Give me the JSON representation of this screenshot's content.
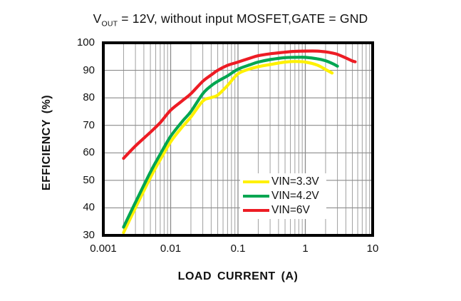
{
  "title": {
    "v": "V",
    "sub": "OUT",
    "rest": " = 12V, without input MOSFET,GATE = GND"
  },
  "chart_data": {
    "type": "line",
    "title": "VOUT = 12V, without input MOSFET,GATE = GND",
    "xlabel": "LOAD CURRENT (A)",
    "ylabel": "EFFICIENCY (%)",
    "x_scale": "log",
    "xlim": [
      0.001,
      10
    ],
    "ylim": [
      30,
      100
    ],
    "x_tick_labels": [
      "0.001",
      "0.01",
      "0.1",
      "1",
      "10"
    ],
    "x_tick_values": [
      0.001,
      0.01,
      0.1,
      1,
      10
    ],
    "y_tick_values": [
      100,
      90,
      80,
      70,
      60,
      50,
      40,
      30
    ],
    "grid": {
      "horizontal": "every 10%",
      "vertical": "log decades + minor lines",
      "minor_color": "#a0a0a0",
      "major_color": "#8c8c8c"
    },
    "frame_color": "#000000",
    "legend_position": "inside-right-middle",
    "series": [
      {
        "name": "VIN=3.3V",
        "color": "#FFF100",
        "points": [
          [
            0.002,
            31
          ],
          [
            0.003,
            40
          ],
          [
            0.005,
            51
          ],
          [
            0.007,
            57.5
          ],
          [
            0.01,
            64
          ],
          [
            0.015,
            69.5
          ],
          [
            0.02,
            73
          ],
          [
            0.03,
            78.8
          ],
          [
            0.04,
            80.1
          ],
          [
            0.05,
            81
          ],
          [
            0.07,
            84.5
          ],
          [
            0.1,
            88.7
          ],
          [
            0.15,
            90.5
          ],
          [
            0.2,
            91.3
          ],
          [
            0.3,
            92.1
          ],
          [
            0.5,
            93
          ],
          [
            0.7,
            93.2
          ],
          [
            1,
            93
          ],
          [
            1.5,
            91.9
          ],
          [
            2,
            90.3
          ],
          [
            2.5,
            89
          ]
        ]
      },
      {
        "name": "VIN=4.2V",
        "color": "#00A651",
        "points": [
          [
            0.002,
            33
          ],
          [
            0.003,
            42
          ],
          [
            0.005,
            53
          ],
          [
            0.007,
            59.5
          ],
          [
            0.01,
            66
          ],
          [
            0.015,
            71.5
          ],
          [
            0.02,
            75
          ],
          [
            0.03,
            81.5
          ],
          [
            0.04,
            84.4
          ],
          [
            0.05,
            86
          ],
          [
            0.07,
            88
          ],
          [
            0.1,
            90.4
          ],
          [
            0.15,
            92
          ],
          [
            0.2,
            93
          ],
          [
            0.3,
            93.9
          ],
          [
            0.5,
            94.6
          ],
          [
            0.7,
            94.7
          ],
          [
            1,
            94.7
          ],
          [
            1.5,
            94.2
          ],
          [
            2,
            93.5
          ],
          [
            2.5,
            92.5
          ],
          [
            3,
            91.5
          ]
        ]
      },
      {
        "name": "VIN=6V",
        "color": "#ED1C24",
        "points": [
          [
            0.002,
            58
          ],
          [
            0.003,
            62.5
          ],
          [
            0.005,
            67.5
          ],
          [
            0.007,
            71
          ],
          [
            0.01,
            75.5
          ],
          [
            0.015,
            79
          ],
          [
            0.02,
            81.5
          ],
          [
            0.03,
            86
          ],
          [
            0.04,
            88.3
          ],
          [
            0.05,
            90
          ],
          [
            0.07,
            91.8
          ],
          [
            0.1,
            93
          ],
          [
            0.15,
            94.4
          ],
          [
            0.2,
            95.3
          ],
          [
            0.3,
            96
          ],
          [
            0.5,
            96.6
          ],
          [
            0.7,
            96.9
          ],
          [
            1,
            97
          ],
          [
            1.5,
            97
          ],
          [
            2,
            96.7
          ],
          [
            2.5,
            96.3
          ],
          [
            3,
            95.8
          ],
          [
            4,
            94.5
          ],
          [
            5,
            93.4
          ],
          [
            5.5,
            93.1
          ]
        ]
      }
    ]
  }
}
